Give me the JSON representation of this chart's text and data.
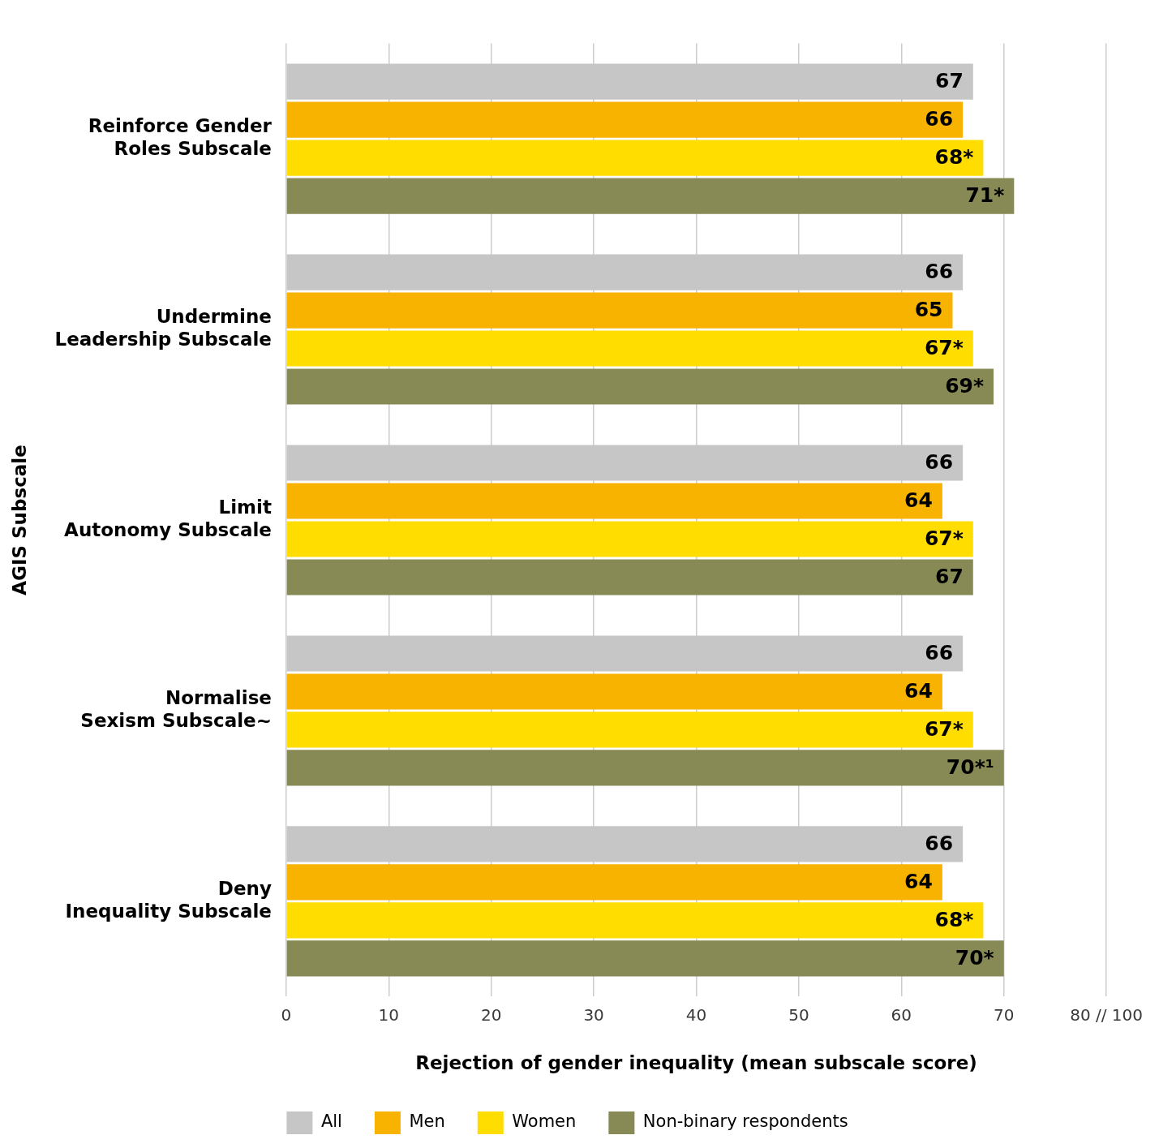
{
  "chart_data": {
    "type": "bar",
    "orientation": "horizontal",
    "categories": [
      "Reinforce Gender Roles Subscale",
      "Undermine Leadership Subscale",
      "Limit Autonomy Subscale",
      "Normalise Sexism Subscale~",
      "Deny Inequality Subscale"
    ],
    "series": [
      {
        "name": "All",
        "color": "#c6c6c6",
        "values": [
          67,
          66,
          66,
          66,
          66
        ],
        "value_labels": [
          "67",
          "66",
          "66",
          "66",
          "66"
        ]
      },
      {
        "name": "Men",
        "color": "#f8b200",
        "values": [
          66,
          65,
          64,
          64,
          64
        ],
        "value_labels": [
          "66",
          "65",
          "64",
          "64",
          "64"
        ]
      },
      {
        "name": "Women",
        "color": "#ffdd00",
        "values": [
          68,
          67,
          67,
          67,
          68
        ],
        "value_labels": [
          "68*",
          "67*",
          "67*",
          "67*",
          "68*"
        ]
      },
      {
        "name": "Non-binary respondents",
        "color": "#878a55",
        "values": [
          71,
          69,
          67,
          70,
          70
        ],
        "value_labels": [
          "71*",
          "69*",
          "67",
          "70*¹",
          "70*"
        ]
      }
    ],
    "xlabel": "Rejection of gender inequality (mean subscale score)",
    "ylabel": "AGIS Subscale",
    "xlim": [
      0,
      80
    ],
    "xticks": [
      0,
      10,
      20,
      30,
      40,
      50,
      60,
      70,
      {
        "value": 80,
        "label": "80 // 100"
      }
    ],
    "grid": "x",
    "legend": "bottom"
  }
}
